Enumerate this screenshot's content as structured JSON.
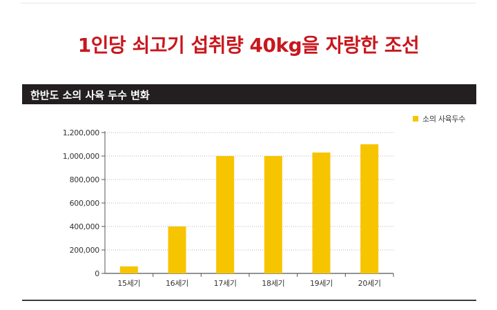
{
  "headline": "1인당 쇠고기 섭취량 40kg을 자랑한 조선",
  "chart_title": "한반도 소의 사육 두수 변화",
  "colors": {
    "bar": "#f7c400",
    "headline": "#c8171d",
    "header_bg": "#231f20"
  },
  "chart_data": {
    "type": "bar",
    "title": "한반도 소의 사육 두수 변화",
    "xlabel": "",
    "ylabel": "",
    "categories": [
      "15세기",
      "16세기",
      "17세기",
      "18세기",
      "19세기",
      "20세기"
    ],
    "series": [
      {
        "name": "소의 사육두수",
        "values": [
          60000,
          400000,
          1000000,
          1000000,
          1030000,
          1100000
        ]
      }
    ],
    "yticks": [
      "0",
      "200,000",
      "400,000",
      "600,000",
      "800,000",
      "1,000,000",
      "1,200,000"
    ],
    "ylim": [
      0,
      1200000
    ],
    "grid": "horizontal-dotted",
    "legend_position": "top-right"
  }
}
